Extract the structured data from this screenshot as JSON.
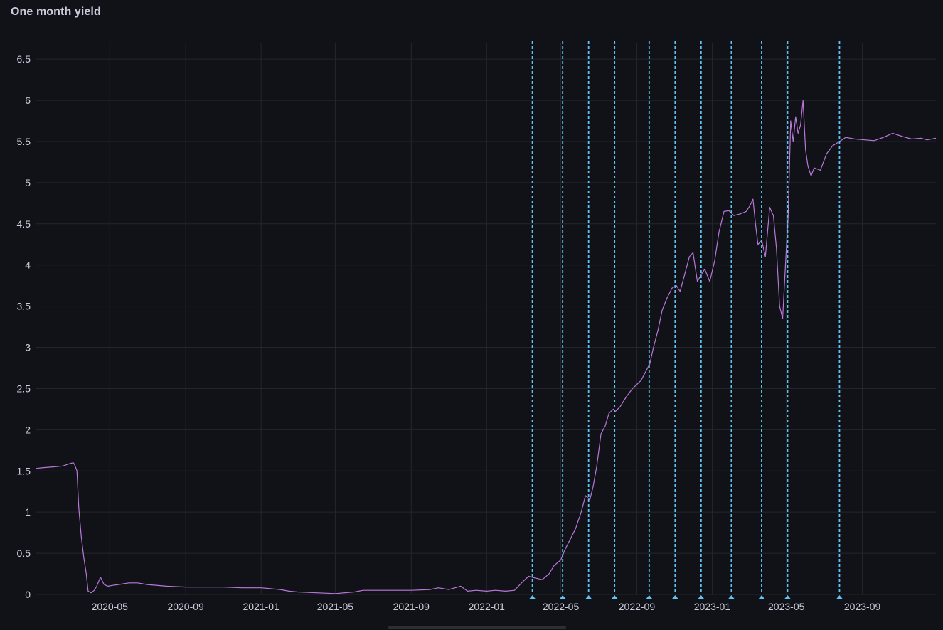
{
  "panel": {
    "title": "One month yield"
  },
  "colors": {
    "background": "#111217",
    "grid": "#24262b",
    "series": "#b877d9",
    "annotation": "#5ec4f3",
    "text": "#ccccdc"
  },
  "chart_data": {
    "type": "line",
    "title": "One month yield",
    "xlabel": "",
    "ylabel": "",
    "grid": true,
    "legend": "none",
    "xlim": [
      "2020-01-02",
      "2023-12-29"
    ],
    "ylim": [
      0,
      6.7
    ],
    "y_ticks": [
      0,
      0.5,
      1,
      1.5,
      2,
      2.5,
      3,
      3.5,
      4,
      4.5,
      5,
      5.5,
      6,
      6.5
    ],
    "y_tick_labels": [
      "0",
      "0.5",
      "1",
      "1.5",
      "2",
      "2.5",
      "3",
      "3.5",
      "4",
      "4.5",
      "5",
      "5.5",
      "6",
      "6.5"
    ],
    "x_ticks": [
      "2020-05-01",
      "2020-09-01",
      "2021-01-01",
      "2021-05-01",
      "2021-09-01",
      "2022-01-01",
      "2022-05-01",
      "2022-09-01",
      "2023-01-01",
      "2023-05-01",
      "2023-09-01"
    ],
    "x_tick_labels": [
      "2020-05",
      "2020-09",
      "2021-01",
      "2021-05",
      "2021-09",
      "2022-01",
      "2022-05",
      "2022-09",
      "2023-01",
      "2023-05",
      "2023-09"
    ],
    "annotations": [
      {
        "date": "2022-03-16"
      },
      {
        "date": "2022-05-04"
      },
      {
        "date": "2022-06-15"
      },
      {
        "date": "2022-07-27"
      },
      {
        "date": "2022-09-21"
      },
      {
        "date": "2022-11-02"
      },
      {
        "date": "2022-12-14"
      },
      {
        "date": "2023-02-01"
      },
      {
        "date": "2023-03-22"
      },
      {
        "date": "2023-05-03"
      },
      {
        "date": "2023-07-26"
      }
    ],
    "series": [
      {
        "x": [
          "2020-01-02",
          "2020-01-15",
          "2020-02-01",
          "2020-02-15",
          "2020-02-27",
          "2020-03-03",
          "2020-03-05",
          "2020-03-09",
          "2020-03-12",
          "2020-03-16",
          "2020-03-20",
          "2020-03-24",
          "2020-03-27",
          "2020-04-01",
          "2020-04-06",
          "2020-04-10",
          "2020-04-16",
          "2020-04-22",
          "2020-04-28",
          "2020-05-05",
          "2020-05-15",
          "2020-06-01",
          "2020-06-15",
          "2020-07-01",
          "2020-08-01",
          "2020-09-01",
          "2020-10-01",
          "2020-11-01",
          "2020-12-01",
          "2021-01-01",
          "2021-02-01",
          "2021-02-15",
          "2021-03-01",
          "2021-04-01",
          "2021-05-01",
          "2021-06-01",
          "2021-06-15",
          "2021-07-01",
          "2021-08-01",
          "2021-09-01",
          "2021-10-01",
          "2021-10-15",
          "2021-11-01",
          "2021-11-20",
          "2021-12-01",
          "2021-12-15",
          "2022-01-01",
          "2022-01-15",
          "2022-02-01",
          "2022-02-15",
          "2022-03-01",
          "2022-03-10",
          "2022-03-20",
          "2022-04-01",
          "2022-04-12",
          "2022-04-20",
          "2022-05-01",
          "2022-05-08",
          "2022-05-15",
          "2022-05-25",
          "2022-06-03",
          "2022-06-10",
          "2022-06-17",
          "2022-06-22",
          "2022-06-28",
          "2022-07-05",
          "2022-07-12",
          "2022-07-18",
          "2022-07-25",
          "2022-07-28",
          "2022-08-05",
          "2022-08-15",
          "2022-08-25",
          "2022-09-01",
          "2022-09-08",
          "2022-09-15",
          "2022-09-22",
          "2022-09-28",
          "2022-10-05",
          "2022-10-12",
          "2022-10-20",
          "2022-10-28",
          "2022-11-04",
          "2022-11-10",
          "2022-11-18",
          "2022-11-25",
          "2022-12-01",
          "2022-12-08",
          "2022-12-14",
          "2022-12-20",
          "2022-12-28",
          "2023-01-05",
          "2023-01-12",
          "2023-01-20",
          "2023-01-28",
          "2023-02-05",
          "2023-02-15",
          "2023-02-25",
          "2023-03-03",
          "2023-03-08",
          "2023-03-12",
          "2023-03-16",
          "2023-03-22",
          "2023-03-28",
          "2023-04-04",
          "2023-04-10",
          "2023-04-15",
          "2023-04-20",
          "2023-04-25",
          "2023-05-01",
          "2023-05-04",
          "2023-05-08",
          "2023-05-12",
          "2023-05-16",
          "2023-05-20",
          "2023-05-24",
          "2023-05-28",
          "2023-06-01",
          "2023-06-05",
          "2023-06-10",
          "2023-06-15",
          "2023-06-25",
          "2023-07-05",
          "2023-07-15",
          "2023-07-26",
          "2023-08-05",
          "2023-08-20",
          "2023-09-05",
          "2023-09-20",
          "2023-10-05",
          "2023-10-20",
          "2023-11-05",
          "2023-11-20",
          "2023-12-05",
          "2023-12-15",
          "2023-12-29"
        ],
        "values": [
          1.53,
          1.54,
          1.55,
          1.56,
          1.59,
          1.6,
          1.58,
          1.5,
          1.05,
          0.7,
          0.45,
          0.25,
          0.04,
          0.02,
          0.05,
          0.1,
          0.21,
          0.12,
          0.1,
          0.11,
          0.12,
          0.14,
          0.14,
          0.12,
          0.1,
          0.09,
          0.09,
          0.09,
          0.08,
          0.08,
          0.06,
          0.04,
          0.03,
          0.02,
          0.01,
          0.03,
          0.05,
          0.05,
          0.05,
          0.05,
          0.06,
          0.08,
          0.06,
          0.1,
          0.04,
          0.05,
          0.04,
          0.05,
          0.04,
          0.05,
          0.16,
          0.22,
          0.2,
          0.18,
          0.25,
          0.35,
          0.42,
          0.55,
          0.65,
          0.8,
          1.0,
          1.2,
          1.15,
          1.3,
          1.55,
          1.95,
          2.05,
          2.2,
          2.25,
          2.22,
          2.28,
          2.4,
          2.5,
          2.55,
          2.6,
          2.7,
          2.8,
          3.0,
          3.2,
          3.45,
          3.6,
          3.72,
          3.75,
          3.68,
          3.9,
          4.1,
          4.15,
          3.8,
          3.88,
          3.95,
          3.8,
          4.05,
          4.4,
          4.65,
          4.66,
          4.6,
          4.62,
          4.65,
          4.72,
          4.8,
          4.5,
          4.25,
          4.3,
          4.1,
          4.7,
          4.6,
          4.2,
          3.5,
          3.35,
          4.2,
          4.6,
          5.75,
          5.5,
          5.8,
          5.6,
          5.7,
          6.0,
          5.4,
          5.2,
          5.08,
          5.18,
          5.15,
          5.35,
          5.45,
          5.5,
          5.55,
          5.53,
          5.52,
          5.51,
          5.55,
          5.6,
          5.56,
          5.53,
          5.54,
          5.52,
          5.54
        ]
      }
    ]
  }
}
